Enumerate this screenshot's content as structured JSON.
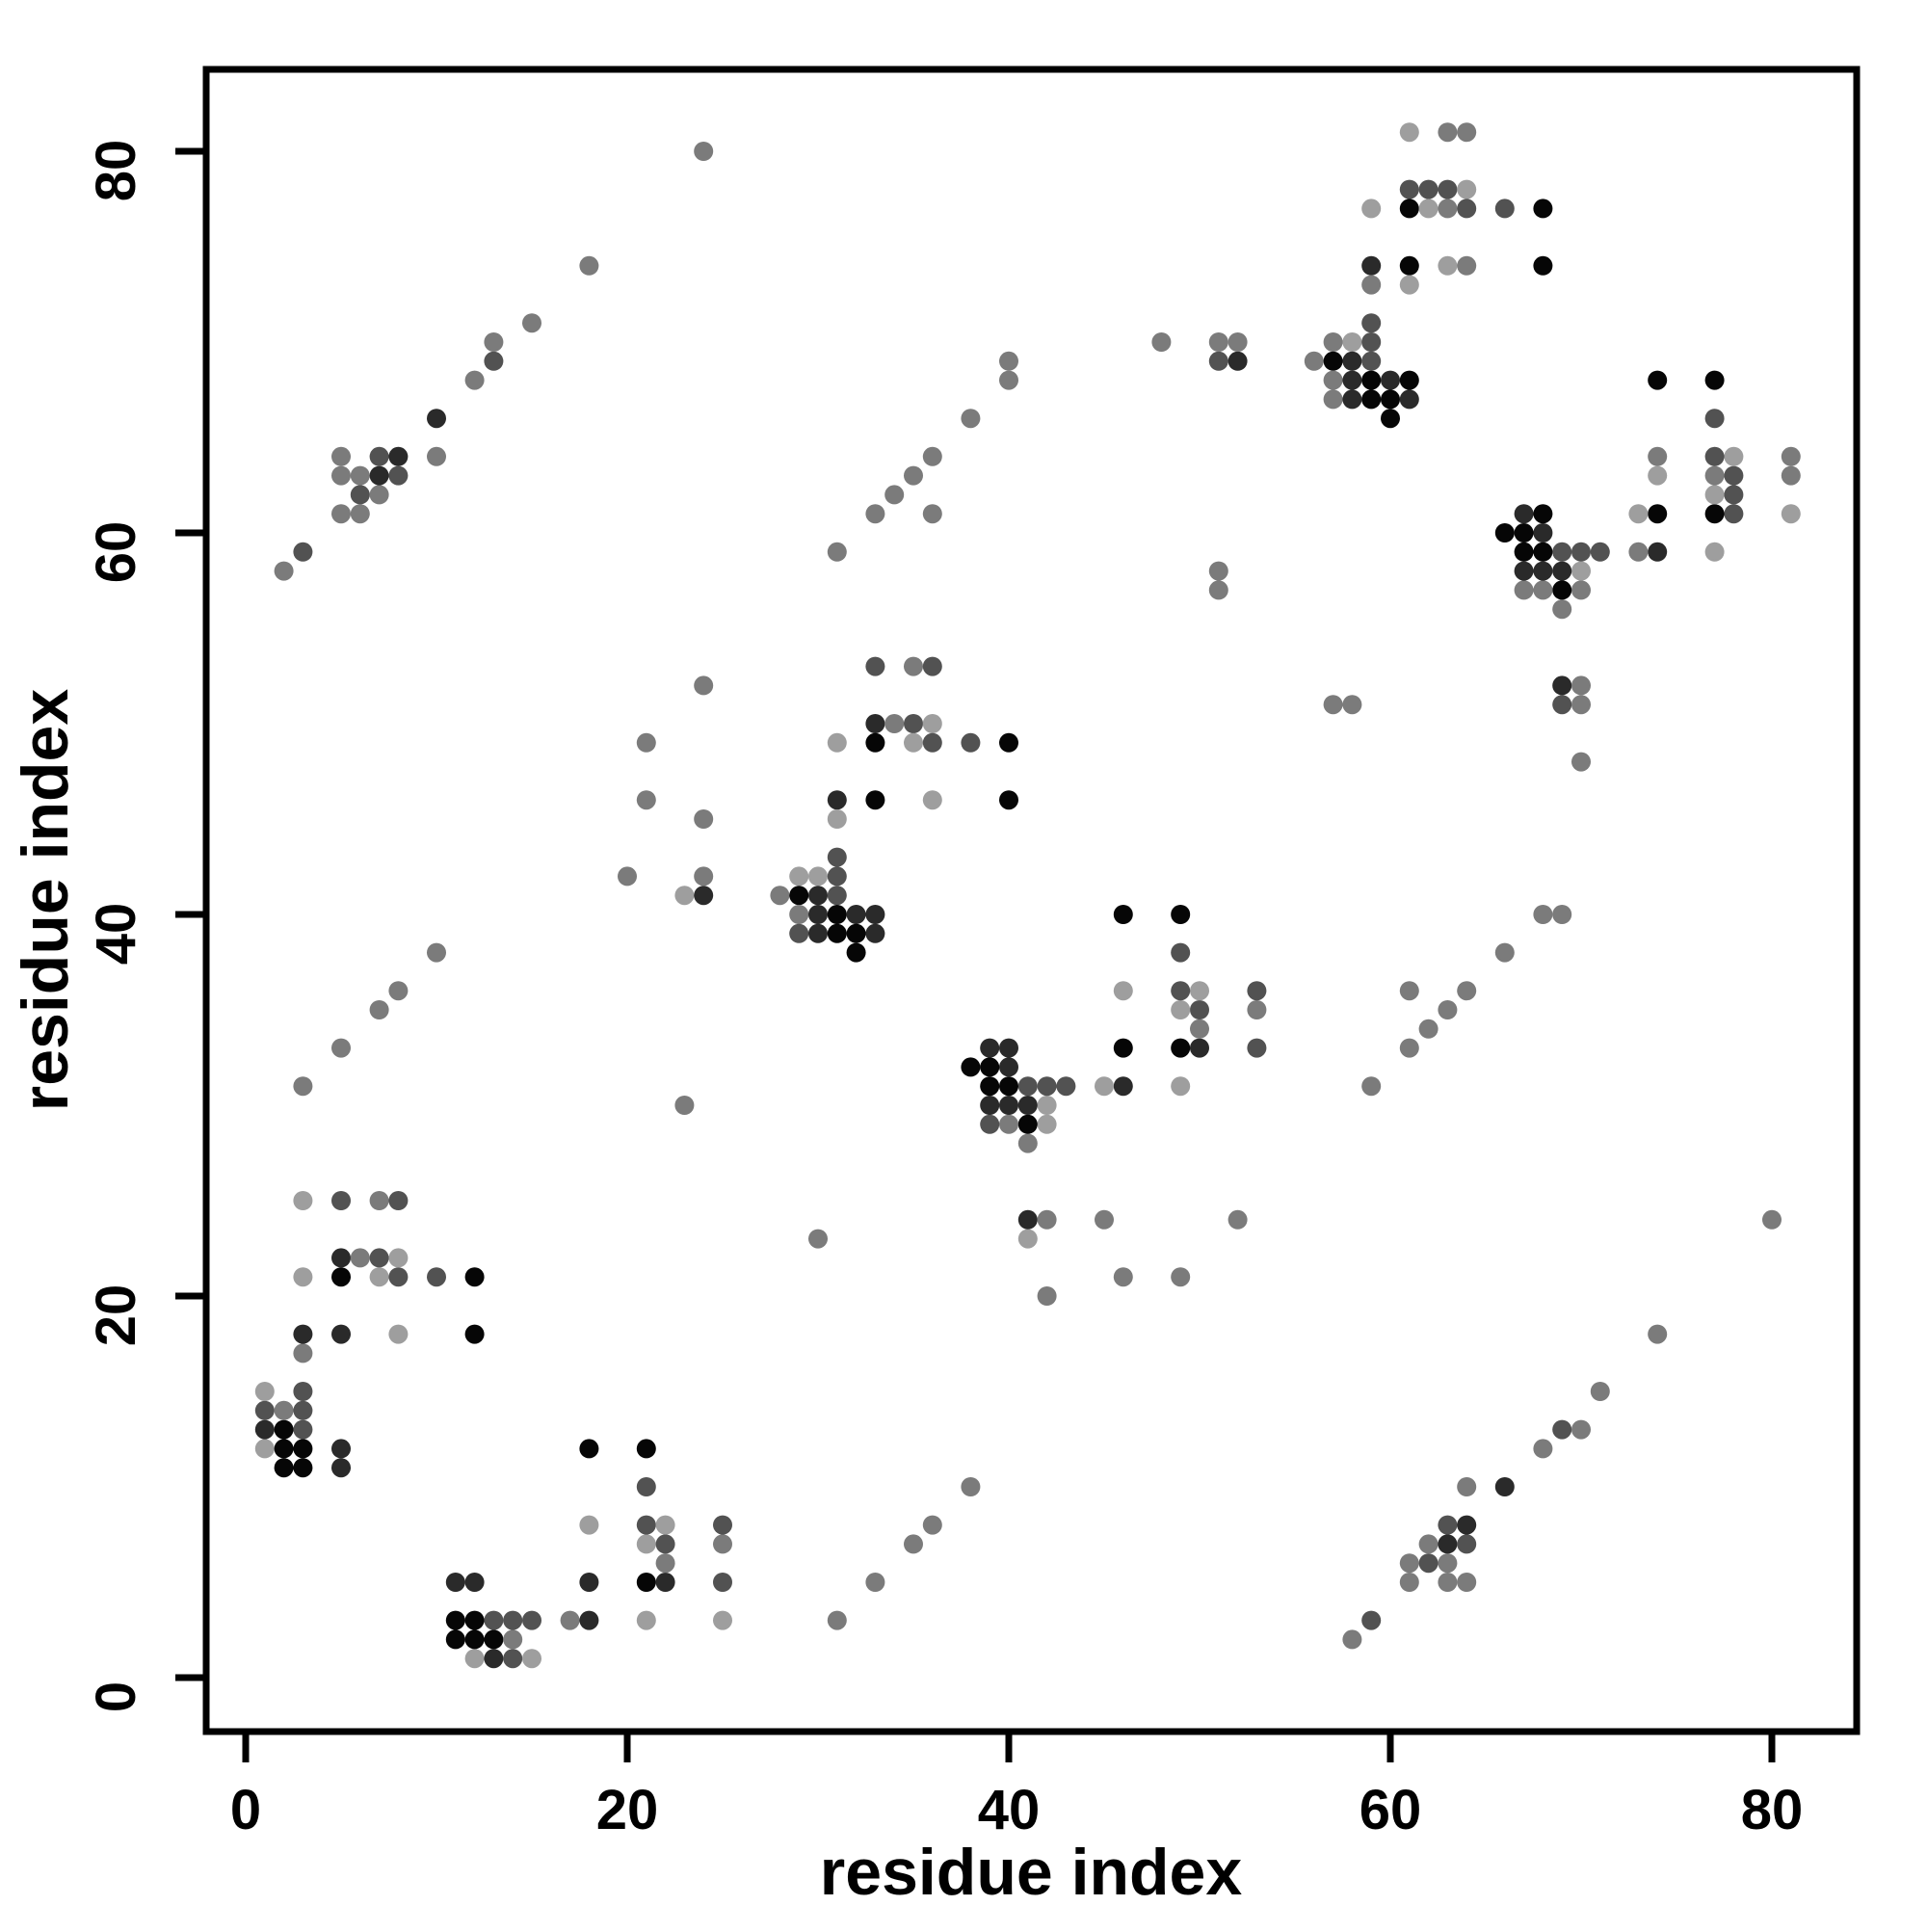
{
  "page": {
    "background": "#ffffff"
  },
  "chart_data": {
    "type": "scatter",
    "title": "",
    "xlabel": "residue index",
    "ylabel": "residue index",
    "x_ticks": [
      0,
      20,
      40,
      60,
      80
    ],
    "y_ticks": [
      0,
      20,
      40,
      60,
      80
    ],
    "xlim": [
      -2.1,
      84.4
    ],
    "ylim": [
      -2.8,
      84.3
    ],
    "grid": false,
    "legend": null,
    "symmetric": true,
    "point_shades": {
      "1": "#9e9e9e",
      "2": "#7b7b7b",
      "3": "#525252",
      "4": "#2a2a2a",
      "5": "#060606"
    },
    "contacts": [
      [
        1,
        12,
        1
      ],
      [
        2,
        12,
        5
      ],
      [
        3,
        12,
        5
      ],
      [
        5,
        12,
        4
      ],
      [
        2,
        11,
        5
      ],
      [
        3,
        11,
        5
      ],
      [
        5,
        11,
        4
      ],
      [
        1,
        13,
        4
      ],
      [
        2,
        13,
        5
      ],
      [
        3,
        13,
        3
      ],
      [
        1,
        14,
        3
      ],
      [
        2,
        14,
        2
      ],
      [
        3,
        14,
        3
      ],
      [
        1,
        15,
        1
      ],
      [
        3,
        15,
        3
      ],
      [
        3,
        17,
        2
      ],
      [
        3,
        18,
        4
      ],
      [
        5,
        18,
        4
      ],
      [
        8,
        18,
        1
      ],
      [
        12,
        18,
        5
      ],
      [
        3,
        21,
        1
      ],
      [
        5,
        21,
        5
      ],
      [
        7,
        21,
        1
      ],
      [
        8,
        21,
        3
      ],
      [
        10,
        21,
        3
      ],
      [
        12,
        21,
        5
      ],
      [
        5,
        22,
        4
      ],
      [
        6,
        22,
        2
      ],
      [
        7,
        22,
        3
      ],
      [
        8,
        22,
        1
      ],
      [
        3,
        25,
        1
      ],
      [
        5,
        25,
        3
      ],
      [
        7,
        25,
        2
      ],
      [
        8,
        25,
        3
      ],
      [
        3,
        31,
        2
      ],
      [
        5,
        33,
        2
      ],
      [
        7,
        35,
        2
      ],
      [
        8,
        36,
        2
      ],
      [
        10,
        38,
        2
      ],
      [
        23,
        30,
        2
      ],
      [
        31,
        43,
        3
      ],
      [
        29,
        42,
        1
      ],
      [
        30,
        42,
        1
      ],
      [
        31,
        42,
        3
      ],
      [
        28,
        41,
        2
      ],
      [
        29,
        41,
        5
      ],
      [
        30,
        41,
        4
      ],
      [
        31,
        41,
        3
      ],
      [
        29,
        40,
        2
      ],
      [
        30,
        40,
        4
      ],
      [
        31,
        40,
        5
      ],
      [
        32,
        40,
        4
      ],
      [
        33,
        40,
        4
      ],
      [
        29,
        39,
        3
      ],
      [
        30,
        39,
        4
      ],
      [
        31,
        39,
        5
      ],
      [
        32,
        39,
        5
      ],
      [
        33,
        39,
        4
      ],
      [
        32,
        38,
        5
      ],
      [
        33,
        53,
        3
      ],
      [
        35,
        53,
        2
      ],
      [
        36,
        53,
        3
      ],
      [
        33,
        50,
        4
      ],
      [
        34,
        50,
        2
      ],
      [
        35,
        50,
        3
      ],
      [
        36,
        50,
        1
      ],
      [
        31,
        49,
        1
      ],
      [
        33,
        49,
        5
      ],
      [
        35,
        49,
        1
      ],
      [
        36,
        49,
        3
      ],
      [
        38,
        49,
        3
      ],
      [
        40,
        49,
        5
      ],
      [
        31,
        46,
        4
      ],
      [
        33,
        46,
        5
      ],
      [
        36,
        46,
        1
      ],
      [
        40,
        46,
        5
      ],
      [
        31,
        45,
        1
      ],
      [
        20,
        42,
        2
      ],
      [
        23,
        41,
        1
      ],
      [
        24,
        41,
        4
      ],
      [
        24,
        42,
        2
      ],
      [
        21,
        46,
        2
      ],
      [
        24,
        45,
        2
      ],
      [
        21,
        49,
        2
      ],
      [
        24,
        52,
        2
      ],
      [
        31,
        59,
        2
      ],
      [
        33,
        61,
        2
      ],
      [
        36,
        61,
        2
      ],
      [
        34,
        62,
        2
      ],
      [
        35,
        63,
        2
      ],
      [
        36,
        64,
        2
      ],
      [
        38,
        66,
        2
      ],
      [
        40,
        68,
        2
      ],
      [
        40,
        69,
        2
      ],
      [
        48,
        70,
        2
      ],
      [
        51,
        69,
        3
      ],
      [
        52,
        69,
        4
      ],
      [
        51,
        70,
        2
      ],
      [
        52,
        70,
        2
      ],
      [
        51,
        57,
        2
      ],
      [
        51,
        58,
        2
      ],
      [
        59,
        71,
        3
      ],
      [
        57,
        70,
        2
      ],
      [
        58,
        70,
        1
      ],
      [
        59,
        70,
        3
      ],
      [
        56,
        69,
        2
      ],
      [
        57,
        69,
        5
      ],
      [
        58,
        69,
        4
      ],
      [
        59,
        69,
        3
      ],
      [
        57,
        68,
        2
      ],
      [
        58,
        68,
        4
      ],
      [
        59,
        68,
        5
      ],
      [
        60,
        68,
        4
      ],
      [
        61,
        68,
        5
      ],
      [
        57,
        67,
        2
      ],
      [
        58,
        67,
        4
      ],
      [
        59,
        67,
        5
      ],
      [
        60,
        67,
        5
      ],
      [
        61,
        67,
        4
      ],
      [
        60,
        66,
        5
      ],
      [
        61,
        81,
        1
      ],
      [
        63,
        81,
        2
      ],
      [
        64,
        81,
        2
      ],
      [
        61,
        78,
        3
      ],
      [
        62,
        78,
        3
      ],
      [
        63,
        78,
        3
      ],
      [
        64,
        78,
        1
      ],
      [
        59,
        77,
        1
      ],
      [
        61,
        77,
        5
      ],
      [
        62,
        77,
        1
      ],
      [
        63,
        77,
        2
      ],
      [
        64,
        77,
        3
      ],
      [
        66,
        77,
        3
      ],
      [
        68,
        77,
        5
      ],
      [
        59,
        74,
        4
      ],
      [
        61,
        74,
        5
      ],
      [
        63,
        74,
        1
      ],
      [
        64,
        74,
        2
      ],
      [
        68,
        74,
        5
      ],
      [
        59,
        73,
        2
      ],
      [
        61,
        73,
        1
      ],
      [
        2,
        58,
        2
      ],
      [
        3,
        59,
        3
      ],
      [
        5,
        61,
        2
      ],
      [
        6,
        61,
        2
      ],
      [
        6,
        62,
        3
      ],
      [
        7,
        62,
        2
      ],
      [
        5,
        63,
        2
      ],
      [
        6,
        63,
        2
      ],
      [
        7,
        63,
        4
      ],
      [
        8,
        63,
        3
      ],
      [
        5,
        64,
        2
      ],
      [
        7,
        64,
        3
      ],
      [
        8,
        64,
        4
      ],
      [
        10,
        64,
        2
      ],
      [
        10,
        66,
        4
      ],
      [
        12,
        68,
        2
      ],
      [
        13,
        69,
        3
      ],
      [
        13,
        70,
        2
      ],
      [
        15,
        71,
        2
      ],
      [
        18,
        74,
        2
      ],
      [
        24,
        80,
        2
      ]
    ]
  }
}
